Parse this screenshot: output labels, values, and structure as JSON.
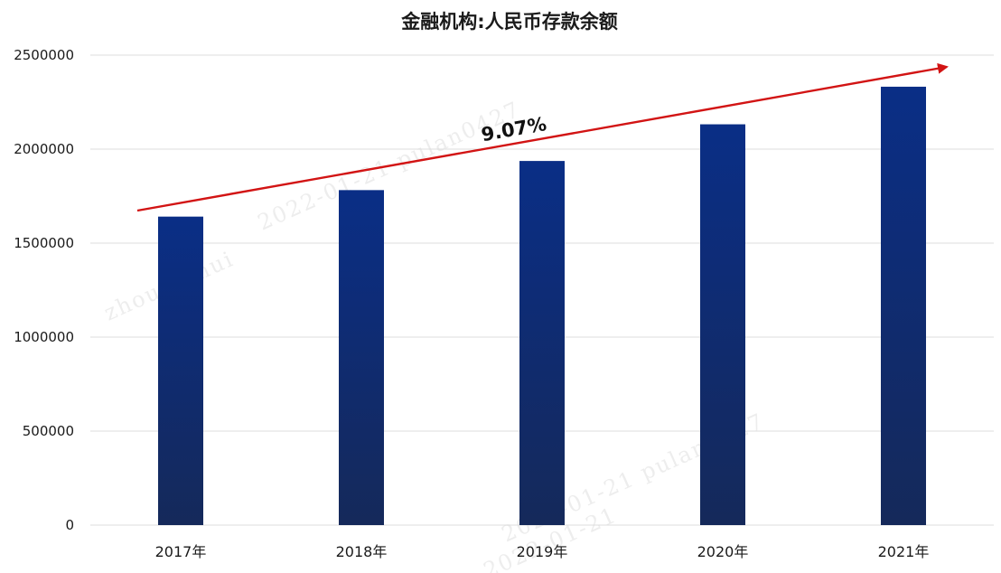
{
  "chart_data": {
    "type": "bar",
    "title": "金融机构:人民币存款余额",
    "categories": [
      "2017年",
      "2018年",
      "2019年",
      "2020年",
      "2021年"
    ],
    "values": [
      1641000,
      1782000,
      1937000,
      2132000,
      2332000
    ],
    "ylim": [
      0,
      2500000
    ],
    "yticks": [
      0,
      500000,
      1000000,
      1500000,
      2000000,
      2500000
    ],
    "grid": true,
    "legend": "none",
    "annotation": {
      "text": "9.07%",
      "type": "trend-arrow"
    },
    "colors": {
      "bar_top": "#0a2e86",
      "bar_bottom": "#15295a",
      "trend_arrow": "#d21414",
      "grid": "#dcdcdc"
    }
  },
  "watermarks": [
    "2022-01-21 pulan0427",
    "zhounaihui",
    "2022-01-21 pulan0427",
    "2022-01-21"
  ]
}
